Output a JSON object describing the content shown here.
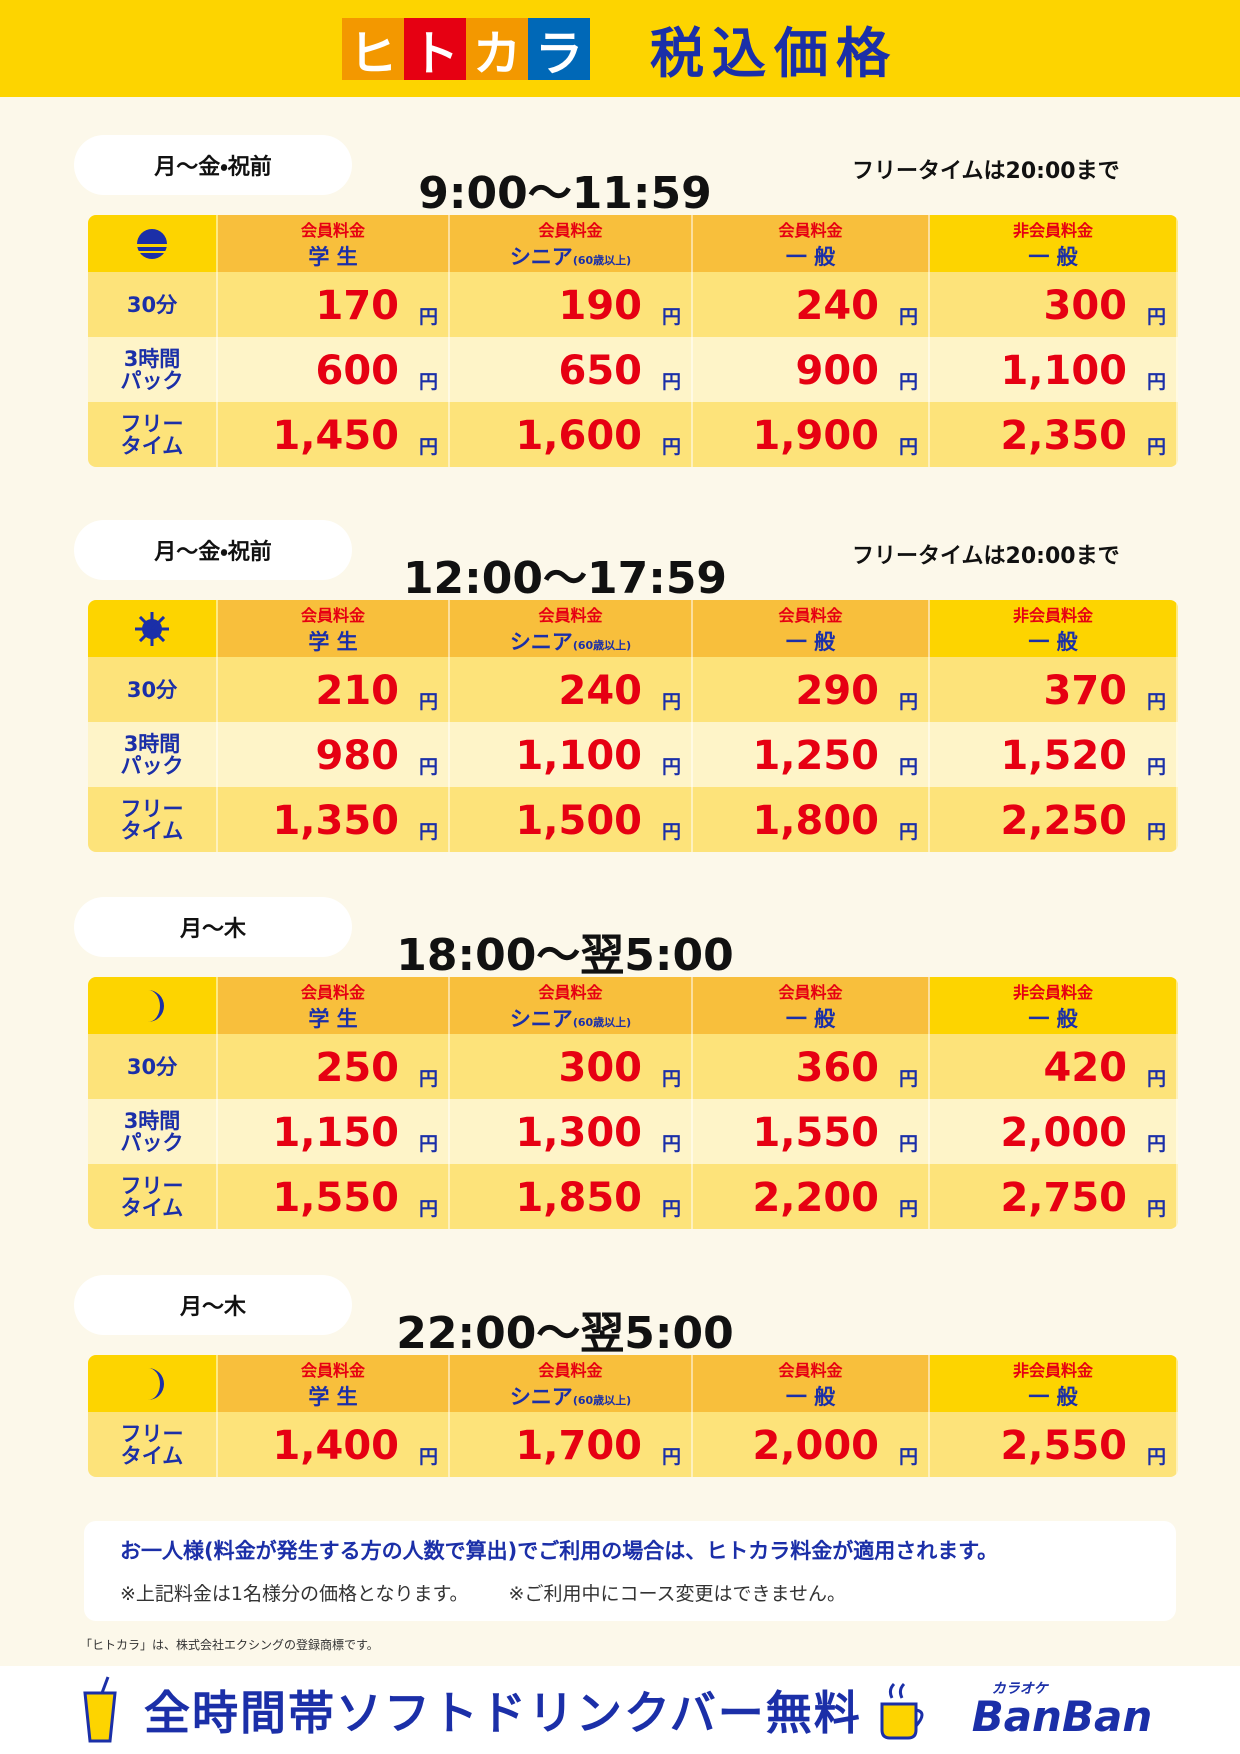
{
  "header": {
    "logo": [
      "ヒ",
      "ト",
      "カ",
      "ラ"
    ],
    "title": "税込価格"
  },
  "currency": "円",
  "columns": [
    {
      "group": "会員料金",
      "name": "学 生"
    },
    {
      "group": "会員料金",
      "name": "シニア",
      "note": "(60歳以上)"
    },
    {
      "group": "会員料金",
      "name": "一 般"
    },
    {
      "group": "非会員料金",
      "name": "一 般"
    }
  ],
  "sections": [
    {
      "days": "月〜金・祝前",
      "time": "9:00〜11:59",
      "note": "フリータイムは20:00まで",
      "rows": [
        {
          "label": [
            "30分"
          ],
          "prices": [
            "170",
            "190",
            "240",
            "300"
          ]
        },
        {
          "label": [
            "3時間",
            "パック"
          ],
          "prices": [
            "600",
            "650",
            "900",
            "1,100"
          ]
        },
        {
          "label": [
            "フリー",
            "タイム"
          ],
          "prices": [
            "1,450",
            "1,600",
            "1,900",
            "2,350"
          ]
        }
      ]
    },
    {
      "days": "月〜金・祝前",
      "time": "12:00〜17:59",
      "note": "フリータイムは20:00まで",
      "rows": [
        {
          "label": [
            "30分"
          ],
          "prices": [
            "210",
            "240",
            "290",
            "370"
          ]
        },
        {
          "label": [
            "3時間",
            "パック"
          ],
          "prices": [
            "980",
            "1,100",
            "1,250",
            "1,520"
          ]
        },
        {
          "label": [
            "フリー",
            "タイム"
          ],
          "prices": [
            "1,350",
            "1,500",
            "1,800",
            "2,250"
          ]
        }
      ]
    },
    {
      "days": "月〜木",
      "time": "18:00〜翌5:00",
      "rows": [
        {
          "label": [
            "30分"
          ],
          "prices": [
            "250",
            "300",
            "360",
            "420"
          ]
        },
        {
          "label": [
            "3時間",
            "パック"
          ],
          "prices": [
            "1,150",
            "1,300",
            "1,550",
            "2,000"
          ]
        },
        {
          "label": [
            "フリー",
            "タイム"
          ],
          "prices": [
            "1,550",
            "1,850",
            "2,200",
            "2,750"
          ]
        }
      ]
    },
    {
      "days": "月〜木",
      "time": "22:00〜翌5:00",
      "rows": [
        {
          "label": [
            "フリー",
            "タイム"
          ],
          "prices": [
            "1,400",
            "1,700",
            "2,000",
            "2,550"
          ]
        }
      ]
    }
  ],
  "notes": {
    "main": "お一人様(料金が発生する方の人数で算出)でご利用の場合は、ヒトカラ料金が適用されます。",
    "sub": [
      "※上記料金は1名様分の価格となります。",
      "※ご利用中にコース変更はできません。"
    ]
  },
  "trademark": "「ヒトカラ」は、株式会社エクシングの登録商標です。",
  "footer": {
    "banner": "全時間帯ソフトドリンクバー無料",
    "brand_small": "カラオケ",
    "brand": "BanBan"
  }
}
